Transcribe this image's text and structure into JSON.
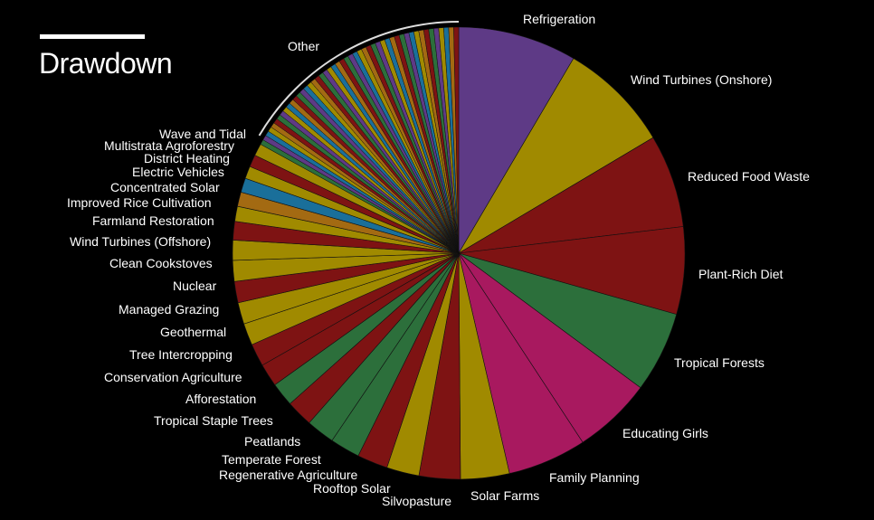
{
  "title": "Drawdown",
  "chart_data": {
    "type": "pie",
    "title": "Drawdown",
    "legend": "none",
    "labels": [
      "Refrigeration",
      "Wind Turbines (Onshore)",
      "Reduced Food Waste",
      "Plant-Rich Diet",
      "Tropical Forests",
      "Educating Girls",
      "Family Planning",
      "Solar Farms",
      "Silvopasture",
      "Rooftop Solar",
      "Regenerative Agriculture",
      "Temperate Forest",
      "Peatlands",
      "Tropical Staple Trees",
      "Afforestation",
      "Conservation Agriculture",
      "Tree Intercropping",
      "Geothermal",
      "Managed Grazing",
      "Nuclear",
      "Clean Cookstoves",
      "Wind Turbines (Offshore)",
      "Farmland Restoration",
      "Improved Rice Cultivation",
      "Concentrated Solar",
      "Electric Vehicles",
      "District Heating",
      "Multistrata Agroforestry",
      "Wave and Tidal",
      "Other"
    ],
    "values": [
      89.74,
      84.6,
      70.53,
      66.11,
      61.23,
      59.6,
      59.6,
      36.9,
      31.19,
      24.6,
      23.15,
      22.61,
      21.57,
      20.19,
      18.06,
      17.35,
      17.2,
      16.6,
      16.34,
      16.09,
      15.81,
      15.2,
      14.08,
      11.34,
      10.9,
      10.8,
      9.38,
      9.28,
      9.2,
      180
    ]
  },
  "slice_colors": [
    "#5e3a86",
    "#a08a00",
    "#7e1313",
    "#7e1313",
    "#2c6f3b",
    "#a8195f",
    "#a8195f",
    "#a08a00",
    "#7e1313",
    "#a08a00",
    "#7e1313",
    "#2c6f3b",
    "#2c6f3b",
    "#7e1313",
    "#2c6f3b",
    "#7e1313",
    "#7e1313",
    "#a08a00",
    "#a08a00",
    "#7e1313",
    "#a08a00",
    "#a08a00",
    "#7e1313",
    "#a08a00",
    "#a36a12",
    "#1a6f9a",
    "#a08a00",
    "#7e1313",
    "#a08a00"
  ],
  "other_colors": [
    "#2c6f3b",
    "#5e3a86",
    "#1a6f9a",
    "#a08a00",
    "#a36a12",
    "#7e1313",
    "#2c6f3b",
    "#5e3a86",
    "#a08a00",
    "#1a6f9a",
    "#a36a12",
    "#7e1313"
  ]
}
